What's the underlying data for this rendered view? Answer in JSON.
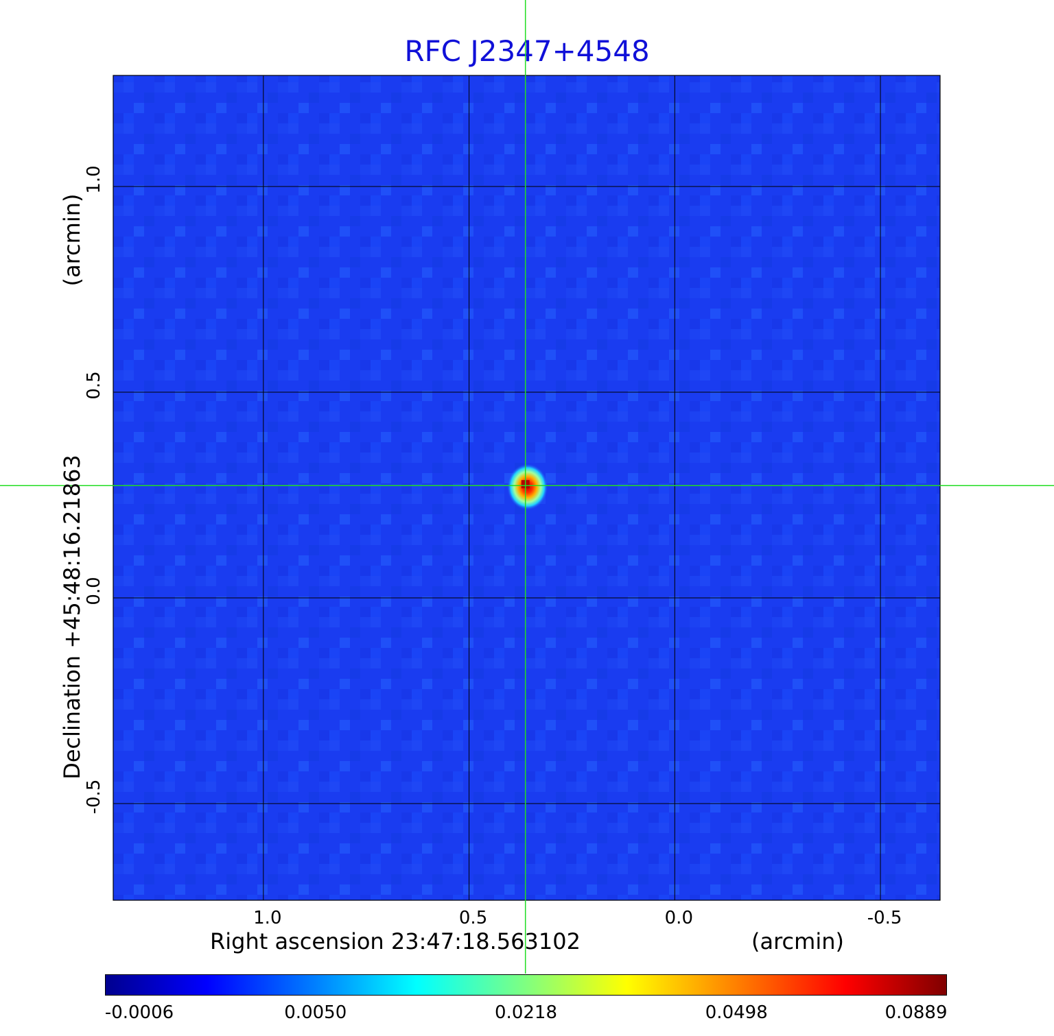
{
  "chart_data": {
    "type": "heatmap",
    "title": "RFC J2347+4548",
    "xlabel": "Right ascension  23:47:18.563102",
    "xunit": "(arcmin)",
    "ylabel": "Declination  +45:48:16.21863",
    "yunit": "(arcmin)",
    "xlim": [
      1.365,
      -0.645
    ],
    "ylim": [
      -0.735,
      1.27
    ],
    "xticks": [
      {
        "value": 1.0,
        "label": "1.0"
      },
      {
        "value": 0.5,
        "label": "0.5"
      },
      {
        "value": 0.0,
        "label": "0.0"
      },
      {
        "value": -0.5,
        "label": "-0.5"
      }
    ],
    "yticks": [
      {
        "value": 1.0,
        "label": "1.0"
      },
      {
        "value": 0.5,
        "label": "0.5"
      },
      {
        "value": 0.0,
        "label": "0.0"
      },
      {
        "value": -0.5,
        "label": "-0.5"
      }
    ],
    "grid": true,
    "crosshair": {
      "x": 0.363,
      "y": 0.273,
      "color": "#22dd22"
    },
    "source": {
      "x": 0.363,
      "y": 0.273,
      "peak": 0.0889
    },
    "colorbar": {
      "colormap": "jet",
      "ticks": [
        "-0.0006",
        "0.0050",
        "0.0218",
        "0.0498",
        "0.0889"
      ]
    },
    "colors": {
      "title": "#1010d8",
      "background_field": "#1a3cf0"
    }
  }
}
